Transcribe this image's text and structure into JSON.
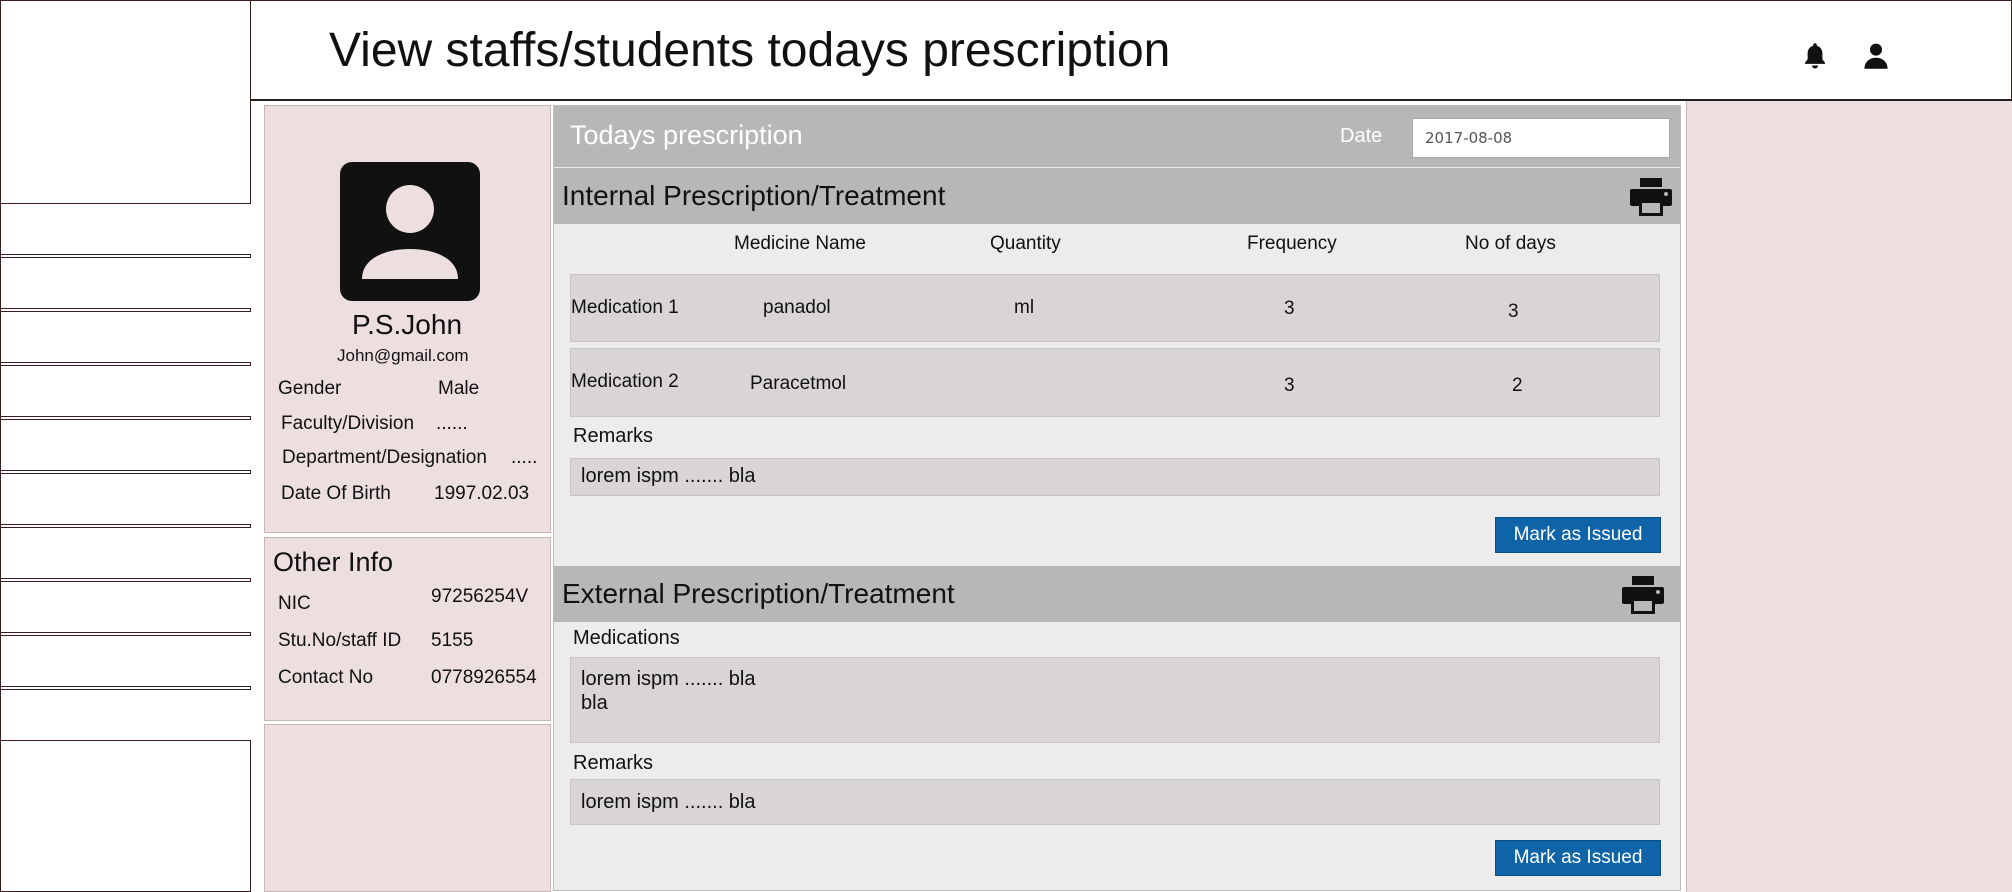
{
  "header": {
    "title": "View staffs/students todays prescription"
  },
  "icons": {
    "bell": "bell-icon",
    "user": "user-icon",
    "printer": "printer-icon",
    "avatar": "person-icon"
  },
  "colors": {
    "panel_pink": "#eddfdf",
    "header_gray": "#b7b7b7",
    "row_gray": "#d9d5d5",
    "button_blue": "#0f64a8"
  },
  "profile": {
    "name": "P.S.John",
    "email": "John@gmail.com",
    "gender_label": "Gender",
    "gender": "Male",
    "faculty_label": "Faculty/Division",
    "faculty": "......",
    "department_label": "Department/Designation",
    "department": ".....",
    "dob_label": "Date Of Birth",
    "dob": "1997.02.03"
  },
  "other_info": {
    "title": "Other Info",
    "nic_label": "NIC",
    "nic": "97256254V",
    "id_label": "Stu.No/staff ID",
    "id": "5155",
    "contact_label": "Contact No",
    "contact": "0778926554"
  },
  "prescription": {
    "title": "Todays prescription",
    "date_label": "Date",
    "date_value": "2017-08-08"
  },
  "internal": {
    "title": "Internal Prescription/Treatment",
    "columns": [
      "Medicine Name",
      "Quantity",
      "Frequency",
      "No of days"
    ],
    "rows": [
      {
        "label": "Medication 1",
        "medicine": "panadol",
        "quantity": "ml",
        "frequency": "3",
        "days": "3"
      },
      {
        "label": "Medication 2",
        "medicine": "Paracetmol",
        "quantity": "",
        "frequency": "3",
        "days": "2"
      }
    ],
    "remarks_label": "Remarks",
    "remarks": "lorem ispm ....... bla",
    "button": "Mark as Issued"
  },
  "external": {
    "title": "External Prescription/Treatment",
    "medications_label": "Medications",
    "medications_line1": "lorem ispm ....... bla",
    "medications_line2": "bla",
    "remarks_label": "Remarks",
    "remarks": "lorem ispm ....... bla",
    "button": "Mark as Issued"
  }
}
